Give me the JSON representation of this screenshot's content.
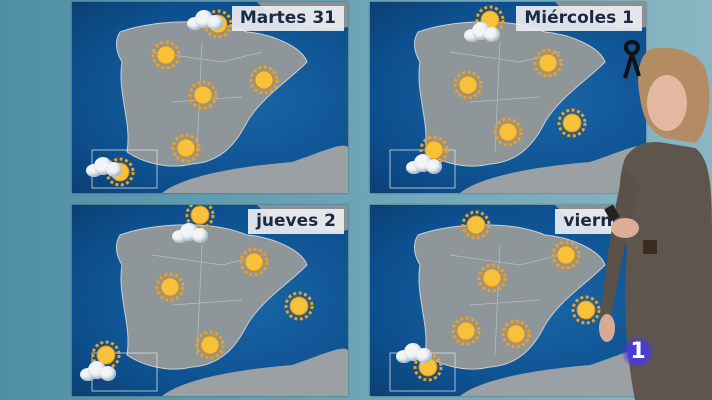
{
  "panels": [
    {
      "label": "Martes 31",
      "icons": [
        "sun",
        "sun",
        "sun",
        "sun",
        "sun",
        "sun",
        "cloud",
        "cloud"
      ]
    },
    {
      "label": "Miércoles 1",
      "icons": [
        "sun",
        "sun",
        "sun",
        "sun",
        "sun",
        "sun",
        "cloud",
        "cloud"
      ]
    },
    {
      "label": "jueves 2",
      "icons": [
        "sun",
        "sun",
        "sun",
        "sun",
        "sun",
        "sun",
        "cloud",
        "cloud"
      ]
    },
    {
      "label": "viernes",
      "icons": [
        "sun",
        "sun",
        "sun",
        "sun",
        "sun",
        "sun",
        "sun",
        "cloud"
      ]
    }
  ],
  "channel_logo": "1",
  "colors": {
    "sea": "#0d4f8e",
    "land": "#8f969a",
    "sun": "#f5b21e",
    "logo": "#4a3bd6"
  }
}
